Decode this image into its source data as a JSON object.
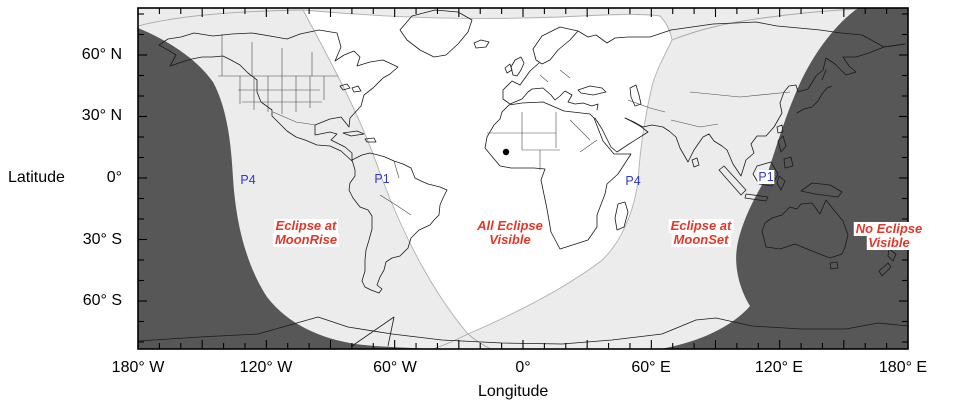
{
  "axes": {
    "x": {
      "label": "Longitude",
      "ticks": [
        "180° W",
        "120° W",
        "60° W",
        "0°",
        "60° E",
        "120° E",
        "180° E"
      ]
    },
    "y": {
      "label": "Latitude",
      "ticks": [
        "60° N",
        "30° N",
        "0°",
        "30° S",
        "60° S"
      ]
    }
  },
  "zones": [
    {
      "line1": "Eclipse at",
      "line2": "MoonRise"
    },
    {
      "line1": "All Eclipse",
      "line2": "Visible"
    },
    {
      "line1": "Eclipse at",
      "line2": "MoonSet"
    },
    {
      "line1": "No Eclipse",
      "line2": "Visible"
    }
  ],
  "contacts": [
    {
      "label": "P4"
    },
    {
      "label": "P1"
    },
    {
      "label": "P4"
    },
    {
      "label": "P1"
    }
  ],
  "colors": {
    "no_eclipse_fill": "#575757",
    "partial_fill": "#ececec",
    "all_visible_fill": "#ffffff",
    "zone_label_color": "#e2382a",
    "contact_label_color": "#3039c8",
    "contour_line": "#a8a8a8",
    "coastline": "#1a1a1a"
  }
}
